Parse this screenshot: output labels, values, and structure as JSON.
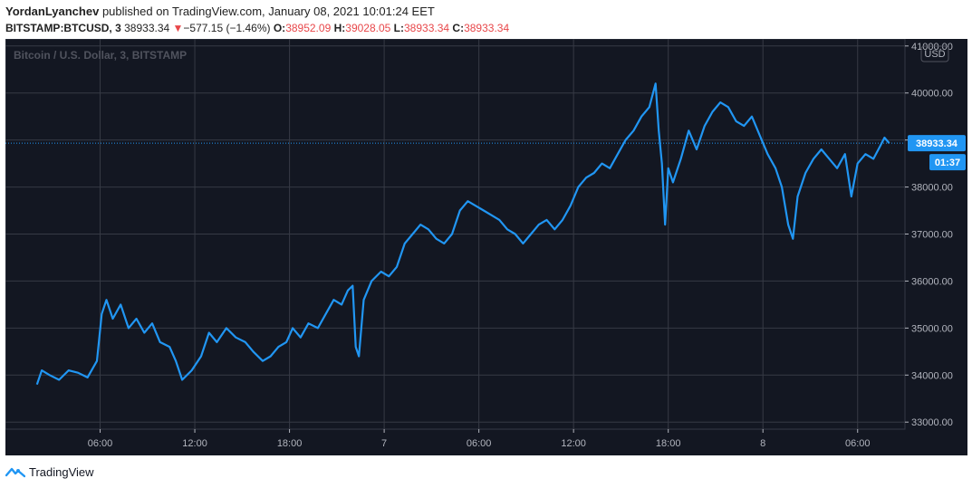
{
  "header": {
    "author": "YordanLyanchev",
    "published_text": "published on TradingView.com, January 08, 2021 10:01:24 EET",
    "symbol": "BITSTAMP:BTCUSD, 3",
    "last": "38933.34",
    "change_arrow": "▼",
    "change": "−577.15 (−1.46%)",
    "o_label": "O:",
    "o_value": "38952.09",
    "h_label": "H:",
    "h_value": "39028.05",
    "l_label": "L:",
    "l_value": "38933.34",
    "c_label": "C:",
    "c_value": "38933.34"
  },
  "colors": {
    "background": "#131722",
    "line": "#2196f3",
    "grid": "#363a45",
    "axis_text": "#b2b5be",
    "down": "#e8474a",
    "price_tag": "#2196f3"
  },
  "chart_data": {
    "type": "line",
    "title": "Bitcoin / U.S. Dollar, 3, BITSTAMP",
    "currency_label": "USD",
    "last_price_label": "38933.34",
    "countdown_label": "01:37",
    "x_ticks": [
      "06:00",
      "12:00",
      "18:00",
      "7",
      "06:00",
      "12:00",
      "18:00",
      "8",
      "06:00"
    ],
    "y_ticks": [
      "41000.00",
      "40000.00",
      "39000.00",
      "38000.00",
      "37000.00",
      "36000.00",
      "35000.00",
      "34000.00",
      "33000.00"
    ],
    "ylim": [
      32850,
      41150
    ],
    "xlim_hours": [
      0,
      57
    ],
    "grid": true,
    "series": [
      {
        "values": [
          [
            2.0,
            33800
          ],
          [
            2.3,
            34100
          ],
          [
            2.8,
            34000
          ],
          [
            3.4,
            33900
          ],
          [
            4.0,
            34100
          ],
          [
            4.6,
            34050
          ],
          [
            5.2,
            33950
          ],
          [
            5.8,
            34300
          ],
          [
            6.1,
            35300
          ],
          [
            6.4,
            35600
          ],
          [
            6.8,
            35200
          ],
          [
            7.3,
            35500
          ],
          [
            7.8,
            35000
          ],
          [
            8.3,
            35200
          ],
          [
            8.8,
            34900
          ],
          [
            9.3,
            35100
          ],
          [
            9.8,
            34700
          ],
          [
            10.4,
            34600
          ],
          [
            10.8,
            34300
          ],
          [
            11.2,
            33900
          ],
          [
            11.8,
            34100
          ],
          [
            12.4,
            34400
          ],
          [
            12.9,
            34900
          ],
          [
            13.4,
            34700
          ],
          [
            14.0,
            35000
          ],
          [
            14.6,
            34800
          ],
          [
            15.2,
            34700
          ],
          [
            15.7,
            34500
          ],
          [
            16.3,
            34300
          ],
          [
            16.8,
            34400
          ],
          [
            17.3,
            34600
          ],
          [
            17.8,
            34700
          ],
          [
            18.2,
            35000
          ],
          [
            18.7,
            34800
          ],
          [
            19.2,
            35100
          ],
          [
            19.8,
            35000
          ],
          [
            20.3,
            35300
          ],
          [
            20.8,
            35600
          ],
          [
            21.3,
            35500
          ],
          [
            21.7,
            35800
          ],
          [
            22.0,
            35900
          ],
          [
            22.2,
            34600
          ],
          [
            22.4,
            34400
          ],
          [
            22.7,
            35600
          ],
          [
            23.2,
            36000
          ],
          [
            23.8,
            36200
          ],
          [
            24.3,
            36100
          ],
          [
            24.8,
            36300
          ],
          [
            25.3,
            36800
          ],
          [
            25.8,
            37000
          ],
          [
            26.3,
            37200
          ],
          [
            26.8,
            37100
          ],
          [
            27.3,
            36900
          ],
          [
            27.8,
            36800
          ],
          [
            28.3,
            37000
          ],
          [
            28.8,
            37500
          ],
          [
            29.3,
            37700
          ],
          [
            29.8,
            37600
          ],
          [
            30.3,
            37500
          ],
          [
            30.8,
            37400
          ],
          [
            31.3,
            37300
          ],
          [
            31.8,
            37100
          ],
          [
            32.3,
            37000
          ],
          [
            32.8,
            36800
          ],
          [
            33.3,
            37000
          ],
          [
            33.8,
            37200
          ],
          [
            34.3,
            37300
          ],
          [
            34.8,
            37100
          ],
          [
            35.3,
            37300
          ],
          [
            35.8,
            37600
          ],
          [
            36.3,
            38000
          ],
          [
            36.8,
            38200
          ],
          [
            37.3,
            38300
          ],
          [
            37.8,
            38500
          ],
          [
            38.3,
            38400
          ],
          [
            38.8,
            38700
          ],
          [
            39.3,
            39000
          ],
          [
            39.8,
            39200
          ],
          [
            40.3,
            39500
          ],
          [
            40.8,
            39700
          ],
          [
            41.2,
            40200
          ],
          [
            41.4,
            39200
          ],
          [
            41.6,
            38500
          ],
          [
            41.8,
            37200
          ],
          [
            42.0,
            38400
          ],
          [
            42.3,
            38100
          ],
          [
            42.8,
            38600
          ],
          [
            43.3,
            39200
          ],
          [
            43.8,
            38800
          ],
          [
            44.3,
            39300
          ],
          [
            44.8,
            39600
          ],
          [
            45.3,
            39800
          ],
          [
            45.8,
            39700
          ],
          [
            46.3,
            39400
          ],
          [
            46.8,
            39300
          ],
          [
            47.3,
            39500
          ],
          [
            47.8,
            39100
          ],
          [
            48.3,
            38700
          ],
          [
            48.8,
            38400
          ],
          [
            49.2,
            38000
          ],
          [
            49.6,
            37200
          ],
          [
            49.9,
            36900
          ],
          [
            50.2,
            37800
          ],
          [
            50.7,
            38300
          ],
          [
            51.2,
            38600
          ],
          [
            51.7,
            38800
          ],
          [
            52.2,
            38600
          ],
          [
            52.7,
            38400
          ],
          [
            53.2,
            38700
          ],
          [
            53.6,
            37800
          ],
          [
            54.0,
            38500
          ],
          [
            54.5,
            38700
          ],
          [
            55.0,
            38600
          ],
          [
            55.4,
            38850
          ],
          [
            55.7,
            39050
          ],
          [
            56.0,
            38933
          ]
        ]
      }
    ]
  },
  "footer": {
    "brand": "TradingView"
  }
}
